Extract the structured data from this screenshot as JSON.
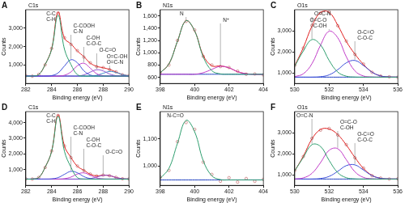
{
  "chart_data": [
    {
      "type": "line",
      "title": "A",
      "subtitle": "C1s",
      "x_label": "Binding energy (eV)",
      "y_label": "Counts",
      "x": [
        282,
        282.5,
        283,
        283.5,
        284,
        284.5,
        285,
        285.5,
        286,
        286.5,
        287,
        287.5,
        288,
        288.5,
        289,
        289.5,
        290
      ],
      "xlim": [
        282,
        290
      ],
      "xticks": [
        282,
        284,
        286,
        288,
        290
      ],
      "ylim": [
        0,
        4000
      ],
      "yticks": [
        {
          "value": 1000,
          "label": "1,000"
        },
        {
          "value": 2000,
          "label": "2,000"
        },
        {
          "value": 3000,
          "label": "3,000"
        }
      ],
      "grid": false,
      "series": [
        {
          "name": "C-C\nC-H",
          "color": "#2e9e6e",
          "line_style": "solid",
          "values": [
            400,
            405,
            479,
            1030,
            1850,
            3700,
            1850,
            1030,
            479,
            405,
            400,
            400,
            400,
            400,
            400,
            400,
            400
          ]
        },
        {
          "name": "C-COOH\nC-N",
          "color": "#3c4fd8",
          "line_style": "solid",
          "values": [
            400,
            400,
            400,
            400,
            425,
            570,
            950,
            1290,
            1120,
            690,
            460,
            406,
            400,
            400,
            400,
            400,
            400
          ]
        },
        {
          "name": "C-OH\nC-O-C",
          "color": "#c03cc8",
          "line_style": "solid",
          "values": [
            400,
            400,
            400,
            400,
            400,
            400,
            446,
            625,
            960,
            1095,
            830,
            530,
            420,
            400,
            400,
            400,
            400
          ]
        },
        {
          "name": "O-C=O",
          "color": "#8a4fd0",
          "line_style": "solid",
          "values": [
            400,
            400,
            400,
            400,
            400,
            400,
            400,
            400,
            400,
            466,
            615,
            745,
            680,
            513,
            423,
            400,
            400
          ]
        },
        {
          "name": "O=C-OH\nO=C-N",
          "color": "#3c8cc8",
          "line_style": "solid",
          "values": [
            400,
            400,
            400,
            400,
            400,
            400,
            400,
            400,
            400,
            400,
            400,
            447,
            553,
            648,
            600,
            480,
            416
          ]
        },
        {
          "color": "#2040c0",
          "line_style": "solid",
          "values": [
            400,
            400,
            400,
            400,
            400,
            400,
            400,
            400,
            400,
            400,
            400,
            400,
            400,
            400,
            400,
            400,
            400
          ]
        },
        {
          "color": "#e02020",
          "line_style": "solid",
          "values": [
            400,
            405,
            479,
            1030,
            1875,
            3870,
            2446,
            2145,
            1759,
            1456,
            1105,
            928,
            853,
            761,
            623,
            480,
            416
          ]
        },
        {
          "color": "#c87878",
          "marker": "circle",
          "values": [
            420,
            395,
            490,
            1010,
            1900,
            3820,
            2480,
            2120,
            1780,
            1430,
            1120,
            910,
            860,
            750,
            630,
            470,
            420
          ]
        }
      ]
    },
    {
      "type": "line",
      "title": "B",
      "subtitle": "N1s",
      "x_label": "Binding energy (eV)",
      "y_label": "Counts",
      "x": [
        398,
        398.5,
        399,
        399.5,
        400,
        400.5,
        401,
        401.5,
        402,
        402.5,
        403,
        403.5,
        404
      ],
      "xlim": [
        398,
        404
      ],
      "xticks": [
        398,
        400,
        402,
        404
      ],
      "ylim": [
        500,
        1700
      ],
      "yticks": [
        600,
        800,
        {
          "value": 1000,
          "label": "1,000"
        },
        {
          "value": 1200,
          "label": "1,200"
        },
        {
          "value": 1400,
          "label": "1,400"
        },
        {
          "value": 1600,
          "label": "1,600"
        }
      ],
      "grid": false,
      "series": [
        {
          "name": "N",
          "color": "#2e9e6e",
          "line_style": "solid",
          "values": [
            675,
            817,
            1187,
            1521,
            1354,
            932,
            708,
            656,
            650,
            650,
            650,
            650,
            650
          ]
        },
        {
          "name": "N⁺",
          "color": "#c03cc8",
          "line_style": "solid",
          "values": [
            650,
            650,
            650,
            650,
            650,
            675,
            729,
            779,
            754,
            692,
            659,
            650,
            650
          ]
        },
        {
          "color": "#2040c0",
          "line_style": "solid",
          "values": [
            650,
            650,
            650,
            650,
            650,
            650,
            650,
            650,
            650,
            650,
            650,
            650,
            650
          ]
        },
        {
          "color": "#e02020",
          "line_style": "solid",
          "values": [
            675,
            817,
            1187,
            1521,
            1354,
            957,
            787,
            785,
            754,
            692,
            659,
            650,
            650
          ]
        },
        {
          "color": "#c87878",
          "marker": "circle",
          "values": [
            680,
            800,
            1200,
            1510,
            1370,
            940,
            800,
            775,
            760,
            700,
            650,
            655,
            640
          ]
        }
      ]
    },
    {
      "type": "line",
      "title": "C",
      "subtitle": "O1s",
      "x_label": "Binding energy (eV)",
      "y_label": "Counts",
      "x": [
        530,
        530.5,
        531,
        531.5,
        532,
        532.5,
        533,
        533.5,
        534,
        534.5,
        535,
        535.5,
        536
      ],
      "xlim": [
        530,
        536
      ],
      "xticks": [
        530,
        532,
        534,
        536
      ],
      "ylim": [
        500,
        4000
      ],
      "yticks": [
        {
          "value": 1000,
          "label": "1,000"
        },
        {
          "value": 2000,
          "label": "2,000"
        },
        {
          "value": 3000,
          "label": "3,000"
        }
      ],
      "grid": false,
      "series": [
        {
          "name": "O=C-N",
          "color": "#2e9e6e",
          "line_style": "solid",
          "values": [
            1322,
            2042,
            2582,
            2330,
            1592,
            1043,
            845,
            805,
            800,
            800,
            800,
            800,
            800
          ]
        },
        {
          "name": "O=C-O\nC-OH",
          "color": "#c03cc8",
          "line_style": "solid",
          "values": [
            824,
            961,
            1438,
            2318,
            2978,
            2670,
            1768,
            1097,
            855,
            807,
            800,
            800,
            800
          ]
        },
        {
          "name": "O-C=O\nC-O-C",
          "color": "#3c4fd8",
          "line_style": "solid",
          "values": [
            800,
            800,
            800,
            820,
            908,
            1152,
            1480,
            1592,
            1352,
            1032,
            858,
            809,
            800
          ]
        },
        {
          "color": "#2040c0",
          "line_style": "solid",
          "values": [
            800,
            800,
            800,
            800,
            800,
            800,
            800,
            800,
            800,
            800,
            800,
            800,
            800
          ]
        },
        {
          "color": "#e02020",
          "line_style": "solid",
          "values": [
            1346,
            2203,
            3220,
            3868,
            3878,
            3265,
            2493,
            1894,
            1407,
            1039,
            858,
            809,
            800
          ]
        },
        {
          "color": "#c87878",
          "marker": "circle",
          "values": [
            1360,
            2180,
            3250,
            3840,
            3900,
            3240,
            2510,
            1880,
            1420,
            1030,
            850,
            815,
            795
          ]
        }
      ]
    },
    {
      "type": "line",
      "title": "D",
      "subtitle": "C1s",
      "x_label": "Binding energy (eV)",
      "y_label": "Counts",
      "x": [
        282,
        282.5,
        283,
        283.5,
        284,
        284.5,
        285,
        285.5,
        286,
        286.5,
        287,
        287.5,
        288,
        288.5,
        289,
        289.5,
        290
      ],
      "xlim": [
        282,
        290
      ],
      "xticks": [
        282,
        284,
        286,
        288,
        290
      ],
      "ylim": [
        0,
        4700
      ],
      "yticks": [
        {
          "value": 1000,
          "label": "1,000"
        },
        {
          "value": 2000,
          "label": "2,000"
        },
        {
          "value": 3000,
          "label": "3,000"
        },
        {
          "value": 4000,
          "label": "4,000"
        }
      ],
      "grid": false,
      "series": [
        {
          "name": "C-C\nC-H",
          "color": "#2e9e6e",
          "line_style": "solid",
          "values": [
            400,
            406,
            496,
            1160,
            2160,
            4400,
            2160,
            1160,
            496,
            406,
            400,
            400,
            400,
            400,
            400,
            400,
            400
          ]
        },
        {
          "name": "C-COOH\nC-N",
          "color": "#3c4fd8",
          "line_style": "solid",
          "values": [
            400,
            400,
            400,
            400,
            414,
            495,
            705,
            895,
            800,
            560,
            433,
            403,
            400,
            400,
            400,
            400,
            400
          ]
        },
        {
          "name": "C-OH\nC-O-C",
          "color": "#c03cc8",
          "line_style": "solid",
          "values": [
            400,
            400,
            400,
            400,
            400,
            400,
            426,
            528,
            720,
            796,
            644,
            476,
            411,
            400,
            400,
            400,
            400
          ]
        },
        {
          "name": "O-C=O",
          "color": "#8a4fd0",
          "line_style": "solid",
          "values": [
            400,
            400,
            400,
            400,
            400,
            400,
            400,
            400,
            400,
            400,
            434,
            527,
            637,
            620,
            503,
            424,
            403
          ]
        },
        {
          "color": "#2040c0",
          "line_style": "solid",
          "values": [
            400,
            400,
            400,
            400,
            400,
            400,
            400,
            400,
            400,
            400,
            400,
            400,
            400,
            400,
            400,
            400,
            400
          ]
        },
        {
          "color": "#e02020",
          "line_style": "solid",
          "values": [
            400,
            406,
            496,
            1160,
            2174,
            4495,
            2491,
            1783,
            1216,
            962,
            711,
            606,
            648,
            620,
            503,
            424,
            403
          ]
        },
        {
          "color": "#c87878",
          "marker": "circle",
          "values": [
            410,
            400,
            505,
            1140,
            2190,
            4460,
            2510,
            1770,
            1230,
            950,
            720,
            600,
            655,
            615,
            510,
            420,
            405
          ]
        }
      ]
    },
    {
      "type": "line",
      "title": "E",
      "subtitle": "N1s",
      "x_label": "Binding energy (eV)",
      "y_label": "Counts",
      "x": [
        398,
        398.5,
        399,
        399.5,
        400,
        400.5,
        401,
        401.5,
        402,
        402.5,
        403,
        403.5,
        404
      ],
      "xlim": [
        398,
        404
      ],
      "xticks": [
        398,
        400,
        402,
        404
      ],
      "ylim": [
        930,
        1200
      ],
      "yticks": [
        {
          "value": 1000,
          "label": "1,000"
        },
        {
          "value": 1100,
          "label": "1,100"
        }
      ],
      "grid": false,
      "series": [
        {
          "name": "N-C=O",
          "color": "#2e9e6e",
          "line_style": "solid",
          "values": [
            956,
            992,
            1084,
            1168,
            1126,
            1020,
            965,
            951,
            950,
            950,
            950,
            950,
            950
          ]
        },
        {
          "color": "#2040c0",
          "line_style": "solid",
          "values": [
            950,
            950,
            950,
            950,
            950,
            950,
            950,
            950,
            950,
            950,
            950,
            950,
            950
          ]
        },
        {
          "color": "#c87878",
          "marker": "circle",
          "values": [
            960,
            985,
            1090,
            1160,
            1135,
            1015,
            970,
            945,
            958,
            942,
            955,
            945,
            952
          ]
        }
      ]
    },
    {
      "type": "line",
      "title": "F",
      "subtitle": "O1s",
      "x_label": "Binding energy (eV)",
      "y_label": "Counts",
      "x": [
        530,
        530.5,
        531,
        531.5,
        532,
        532.5,
        533,
        533.5,
        534,
        534.5,
        535,
        535.5,
        536
      ],
      "xlim": [
        530,
        536
      ],
      "xticks": [
        530,
        532,
        534,
        536
      ],
      "ylim": [
        500,
        4000
      ],
      "yticks": [
        {
          "value": 1000,
          "label": "1,000"
        },
        {
          "value": 2000,
          "label": "2,000"
        },
        {
          "value": 3000,
          "label": "3,000"
        }
      ],
      "grid": false,
      "series": [
        {
          "name": "O=C-N",
          "color": "#2e9e6e",
          "line_style": "solid",
          "values": [
            1191,
            1831,
            2432,
            2347,
            1684,
            1106,
            863,
            808,
            800,
            800,
            800,
            800,
            800
          ]
        },
        {
          "name": "O=C-O\nC-OH",
          "color": "#c03cc8",
          "line_style": "solid",
          "values": [
            800,
            855,
            1070,
            1580,
            2165,
            2240,
            1715,
            1145,
            878,
            811,
            800,
            800,
            800
          ]
        },
        {
          "name": "O-C=O\nC-O-C",
          "color": "#3c4fd8",
          "line_style": "solid",
          "values": [
            800,
            800,
            800,
            826,
            926,
            1164,
            1437,
            1472,
            1227,
            961,
            836,
            805,
            800
          ]
        },
        {
          "color": "#2040c0",
          "line_style": "solid",
          "values": [
            800,
            800,
            800,
            800,
            800,
            800,
            800,
            800,
            800,
            800,
            800,
            800,
            800
          ]
        },
        {
          "color": "#e02020",
          "line_style": "solid",
          "values": [
            1191,
            1886,
            2702,
            3153,
            3175,
            2910,
            2415,
            1825,
            1305,
            972,
            836,
            805,
            800
          ]
        },
        {
          "color": "#c87878",
          "marker": "circle",
          "values": [
            1210,
            1870,
            2730,
            3120,
            3200,
            2890,
            2430,
            1810,
            1320,
            960,
            845,
            800,
            810
          ]
        }
      ]
    }
  ]
}
